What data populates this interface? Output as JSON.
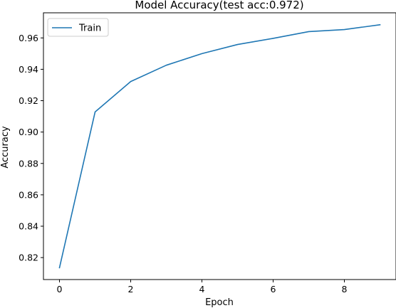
{
  "chart_data": {
    "type": "line",
    "title": "Model Accuracy(test acc:0.972)",
    "xlabel": "Epoch",
    "ylabel": "Accuracy",
    "x": [
      0,
      1,
      2,
      3,
      4,
      5,
      6,
      7,
      8,
      9
    ],
    "series": [
      {
        "name": "Train",
        "color": "#1f77b4",
        "values": [
          0.8135,
          0.9128,
          0.9322,
          0.9426,
          0.95,
          0.9558,
          0.9597,
          0.964,
          0.9653,
          0.9684
        ]
      }
    ],
    "xlim": [
      -0.45,
      9.45
    ],
    "ylim": [
      0.806,
      0.976
    ],
    "xticks": [
      0,
      2,
      4,
      6,
      8
    ],
    "xtick_labels": [
      "0",
      "2",
      "4",
      "6",
      "8"
    ],
    "yticks": [
      0.82,
      0.84,
      0.86,
      0.88,
      0.9,
      0.92,
      0.94,
      0.96
    ],
    "ytick_labels": [
      "0.82",
      "0.84",
      "0.86",
      "0.88",
      "0.90",
      "0.92",
      "0.94",
      "0.96"
    ],
    "grid": false,
    "legend_position": "top-left"
  }
}
